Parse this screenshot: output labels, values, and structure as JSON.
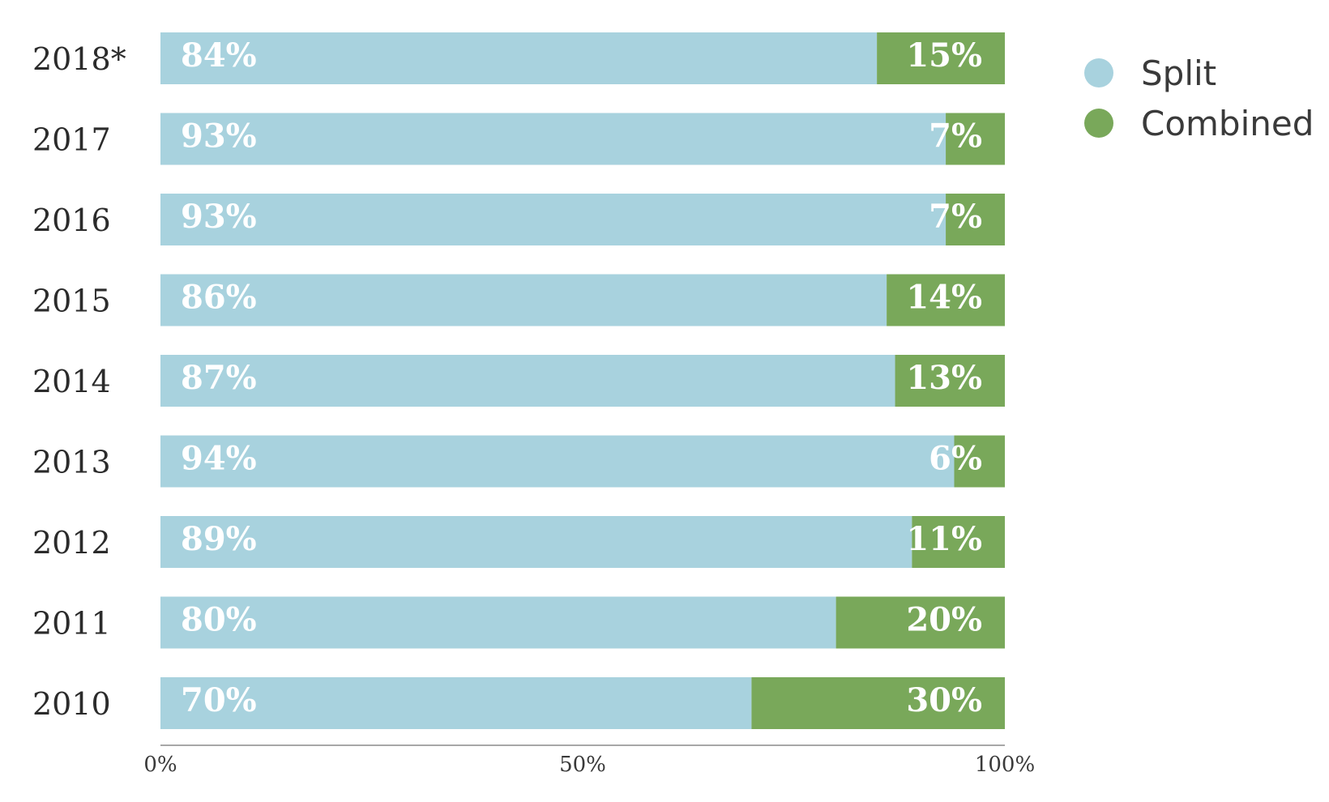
{
  "chart_data": {
    "type": "bar",
    "orientation": "horizontal",
    "stacked": true,
    "categories": [
      "2018*",
      "2017",
      "2016",
      "2015",
      "2014",
      "2013",
      "2012",
      "2011",
      "2010"
    ],
    "series": [
      {
        "name": "Split",
        "color": "#a8d2de",
        "values": [
          84,
          93,
          93,
          86,
          87,
          94,
          89,
          80,
          70
        ],
        "labels": [
          "84%",
          "93%",
          "93%",
          "86%",
          "87%",
          "94%",
          "89%",
          "80%",
          "70%"
        ]
      },
      {
        "name": "Combined",
        "color": "#79a85a",
        "values": [
          15,
          7,
          7,
          14,
          13,
          6,
          11,
          20,
          30
        ],
        "labels": [
          "15%",
          "7%",
          "7%",
          "14%",
          "13%",
          "6%",
          "11%",
          "20%",
          "30%"
        ]
      }
    ],
    "xlim": [
      0,
      100
    ],
    "xticks": [
      "0%",
      "50%",
      "100%"
    ],
    "grid": false,
    "legend_position": "top-right"
  }
}
